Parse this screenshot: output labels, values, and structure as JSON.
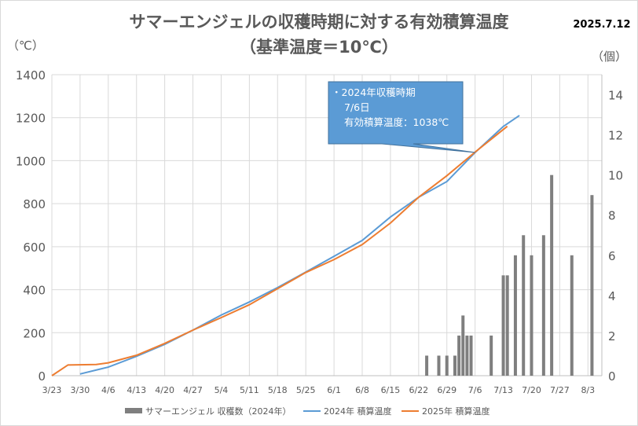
{
  "chart_data": {
    "type": "bar+line",
    "title_line1": "サマーエンジェルの収穫時期に対する有効積算温度",
    "title_line2": "（基準温度＝10℃）",
    "date_label": "2025.7.12",
    "ylabel_left": "（℃）",
    "ylabel_right": "（個）",
    "ylim_left": [
      0,
      1400
    ],
    "yticks_left": [
      0,
      200,
      400,
      600,
      800,
      1000,
      1200,
      1400
    ],
    "ylim_right": [
      0,
      15
    ],
    "yticks_right": [
      0,
      2,
      4,
      6,
      8,
      10,
      12,
      14
    ],
    "xticks": [
      "3/23",
      "3/30",
      "4/6",
      "4/13",
      "4/20",
      "4/27",
      "5/4",
      "5/11",
      "5/18",
      "5/25",
      "6/1",
      "6/8",
      "6/15",
      "6/22",
      "6/29",
      "7/6",
      "7/13",
      "7/20",
      "7/27",
      "8/3"
    ],
    "grid": true,
    "legend_position": "bottom",
    "bars": {
      "name": "サマーエンジェル 収穫数（2024年）",
      "color": "#7f7f7f",
      "dates": [
        "6/24",
        "6/27",
        "6/29",
        "7/1",
        "7/2",
        "7/3",
        "7/4",
        "7/5",
        "7/10",
        "7/13",
        "7/14",
        "7/16",
        "7/18",
        "7/20",
        "7/23",
        "7/25",
        "7/30",
        "8/4"
      ],
      "values": [
        1,
        1,
        1,
        1,
        2,
        3,
        2,
        2,
        2,
        5,
        5,
        6,
        7,
        6,
        7,
        10,
        6,
        9
      ]
    },
    "series": [
      {
        "name": "2024年 積算温度",
        "color": "#5b9bd5",
        "dates": [
          "3/30",
          "4/6",
          "4/13",
          "4/20",
          "4/27",
          "5/4",
          "5/11",
          "5/18",
          "5/25",
          "6/1",
          "6/8",
          "6/15",
          "6/22",
          "6/29",
          "7/6",
          "7/13",
          "7/17"
        ],
        "values": [
          8,
          40,
          90,
          146,
          212,
          282,
          343,
          410,
          482,
          555,
          629,
          738,
          830,
          903,
          1038,
          1159,
          1210
        ]
      },
      {
        "name": "2025年 積算温度",
        "color": "#ed7d31",
        "dates": [
          "3/23",
          "3/27",
          "4/3",
          "4/6",
          "4/13",
          "4/20",
          "4/27",
          "5/4",
          "5/11",
          "5/18",
          "5/25",
          "6/1",
          "6/8",
          "6/15",
          "6/22",
          "6/29",
          "7/6",
          "7/14"
        ],
        "values": [
          0,
          50,
          52,
          60,
          95,
          150,
          212,
          270,
          330,
          405,
          480,
          540,
          610,
          710,
          830,
          930,
          1040,
          1160
        ]
      }
    ],
    "annotation": {
      "lines": [
        "・2024年収穫時期",
        "7/6日",
        "有効積算温度：1038℃"
      ],
      "date": "7/6",
      "value": 1038,
      "fill": "#5b9bd5"
    }
  }
}
